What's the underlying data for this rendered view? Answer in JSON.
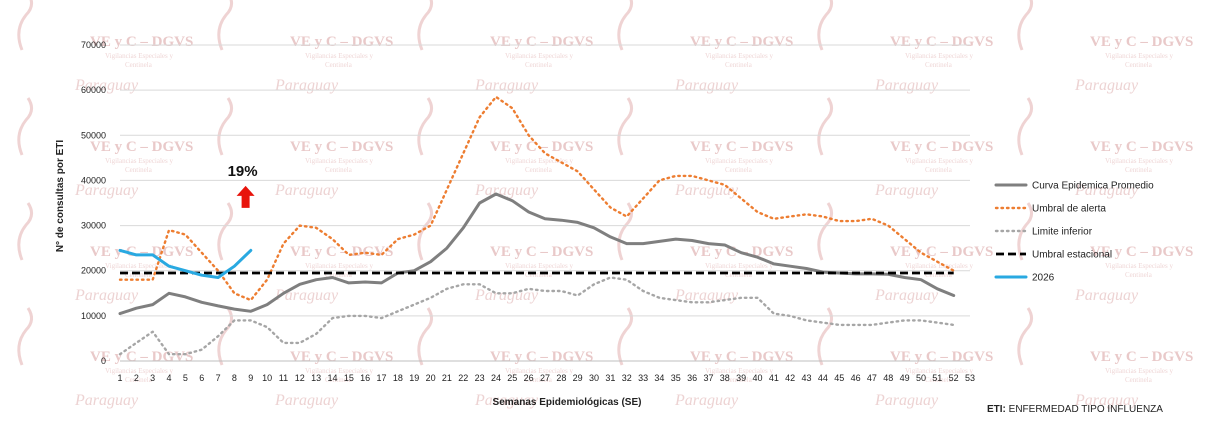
{
  "chart_data": {
    "type": "line",
    "xlabel": "Semanas Epidemiológicas (SE)",
    "ylabel": "N° de consultas por ETI",
    "xlim": [
      1,
      53
    ],
    "ylim": [
      0,
      70000
    ],
    "y_ticks": [
      0,
      10000,
      20000,
      30000,
      40000,
      50000,
      60000,
      70000
    ],
    "x_ticks": [
      1,
      2,
      3,
      4,
      5,
      6,
      7,
      8,
      9,
      10,
      11,
      12,
      13,
      14,
      15,
      16,
      17,
      18,
      19,
      20,
      21,
      22,
      23,
      24,
      25,
      26,
      27,
      28,
      29,
      30,
      31,
      32,
      33,
      34,
      35,
      36,
      37,
      38,
      39,
      40,
      41,
      42,
      43,
      44,
      45,
      46,
      47,
      48,
      49,
      50,
      51,
      52,
      53
    ],
    "grid": true,
    "legend_position": "right",
    "series": [
      {
        "name": "Curva Epidemica Promedio",
        "color": "#7f7f7f",
        "style": "solid",
        "x": [
          1,
          2,
          3,
          4,
          5,
          6,
          7,
          8,
          9,
          10,
          11,
          12,
          13,
          14,
          15,
          16,
          17,
          18,
          19,
          20,
          21,
          22,
          23,
          24,
          25,
          26,
          27,
          28,
          29,
          30,
          31,
          32,
          33,
          34,
          35,
          36,
          37,
          38,
          39,
          40,
          41,
          42,
          43,
          44,
          45,
          46,
          47,
          48,
          49,
          50,
          51,
          52
        ],
        "values": [
          10500,
          11700,
          12500,
          15000,
          14200,
          13000,
          12200,
          11500,
          11000,
          12500,
          15000,
          17000,
          18000,
          18500,
          17300,
          17500,
          17300,
          19500,
          20000,
          22000,
          25000,
          29500,
          35000,
          37000,
          35500,
          33000,
          31500,
          31200,
          30700,
          29500,
          27500,
          26000,
          26000,
          26500,
          27000,
          26700,
          26000,
          25700,
          24000,
          23000,
          21500,
          21000,
          20500,
          19700,
          19500,
          19300,
          19300,
          19200,
          18500,
          18000,
          16000,
          14500
        ]
      },
      {
        "name": "Umbral de alerta",
        "color": "#ed7d31",
        "style": "dotted",
        "x": [
          1,
          2,
          3,
          4,
          5,
          6,
          7,
          8,
          9,
          10,
          11,
          12,
          13,
          14,
          15,
          16,
          17,
          18,
          19,
          20,
          21,
          22,
          23,
          24,
          25,
          26,
          27,
          28,
          29,
          30,
          31,
          32,
          33,
          34,
          35,
          36,
          37,
          38,
          39,
          40,
          41,
          42,
          43,
          44,
          45,
          46,
          47,
          48,
          49,
          50,
          51,
          52
        ],
        "values": [
          18000,
          18000,
          18000,
          29000,
          28000,
          24000,
          20000,
          15000,
          13500,
          18000,
          26000,
          30000,
          29500,
          27000,
          23500,
          24000,
          23500,
          27000,
          28000,
          30000,
          38000,
          46000,
          54000,
          58500,
          56000,
          50000,
          46000,
          44000,
          42000,
          38000,
          34000,
          32000,
          36000,
          40000,
          41000,
          41000,
          40000,
          39000,
          36000,
          33000,
          31500,
          32000,
          32500,
          32000,
          31000,
          31000,
          31500,
          30000,
          27000,
          24000,
          22000,
          20000
        ]
      },
      {
        "name": "Limite inferior",
        "color": "#a6a6a6",
        "style": "dotted",
        "x": [
          1,
          2,
          3,
          4,
          5,
          6,
          7,
          8,
          9,
          10,
          11,
          12,
          13,
          14,
          15,
          16,
          17,
          18,
          19,
          20,
          21,
          22,
          23,
          24,
          25,
          26,
          27,
          28,
          29,
          30,
          31,
          32,
          33,
          34,
          35,
          36,
          37,
          38,
          39,
          40,
          41,
          42,
          43,
          44,
          45,
          46,
          47,
          48,
          49,
          50,
          51,
          52
        ],
        "values": [
          1500,
          4000,
          6500,
          1500,
          1500,
          2500,
          5500,
          9000,
          9000,
          7500,
          4000,
          4000,
          6000,
          9500,
          10000,
          10000,
          9500,
          11000,
          12500,
          14000,
          16000,
          17000,
          17000,
          15000,
          15000,
          16000,
          15500,
          15500,
          14500,
          17000,
          18500,
          18000,
          15500,
          14000,
          13500,
          13000,
          13000,
          13500,
          14000,
          14000,
          10500,
          10000,
          9000,
          8500,
          8000,
          8000,
          8000,
          8500,
          9000,
          9000,
          8500,
          8000
        ]
      },
      {
        "name": "Umbral estacional",
        "color": "#000000",
        "style": "dashed",
        "x": [
          1,
          52
        ],
        "values": [
          19500,
          19500
        ]
      },
      {
        "name": "2026",
        "color": "#29a9e1",
        "style": "solid",
        "x": [
          1,
          2,
          3,
          4,
          5,
          6,
          7,
          8,
          9
        ],
        "values": [
          24500,
          23500,
          23500,
          21000,
          20000,
          19000,
          18500,
          21000,
          24500
        ]
      }
    ],
    "annotations": [
      {
        "text": "19%",
        "x": 8.5,
        "y": 41000,
        "arrow": "up",
        "arrow_color": "#e8140c"
      }
    ]
  },
  "watermark": {
    "title": "VE y C – DGVS",
    "subtitle_1": "Vigilancias Especiales y",
    "subtitle_2": "Centinela",
    "script": "Paraguay"
  },
  "footnote": {
    "label": "ETI:",
    "text": " ENFERMEDAD TIPO INFLUENZA"
  }
}
